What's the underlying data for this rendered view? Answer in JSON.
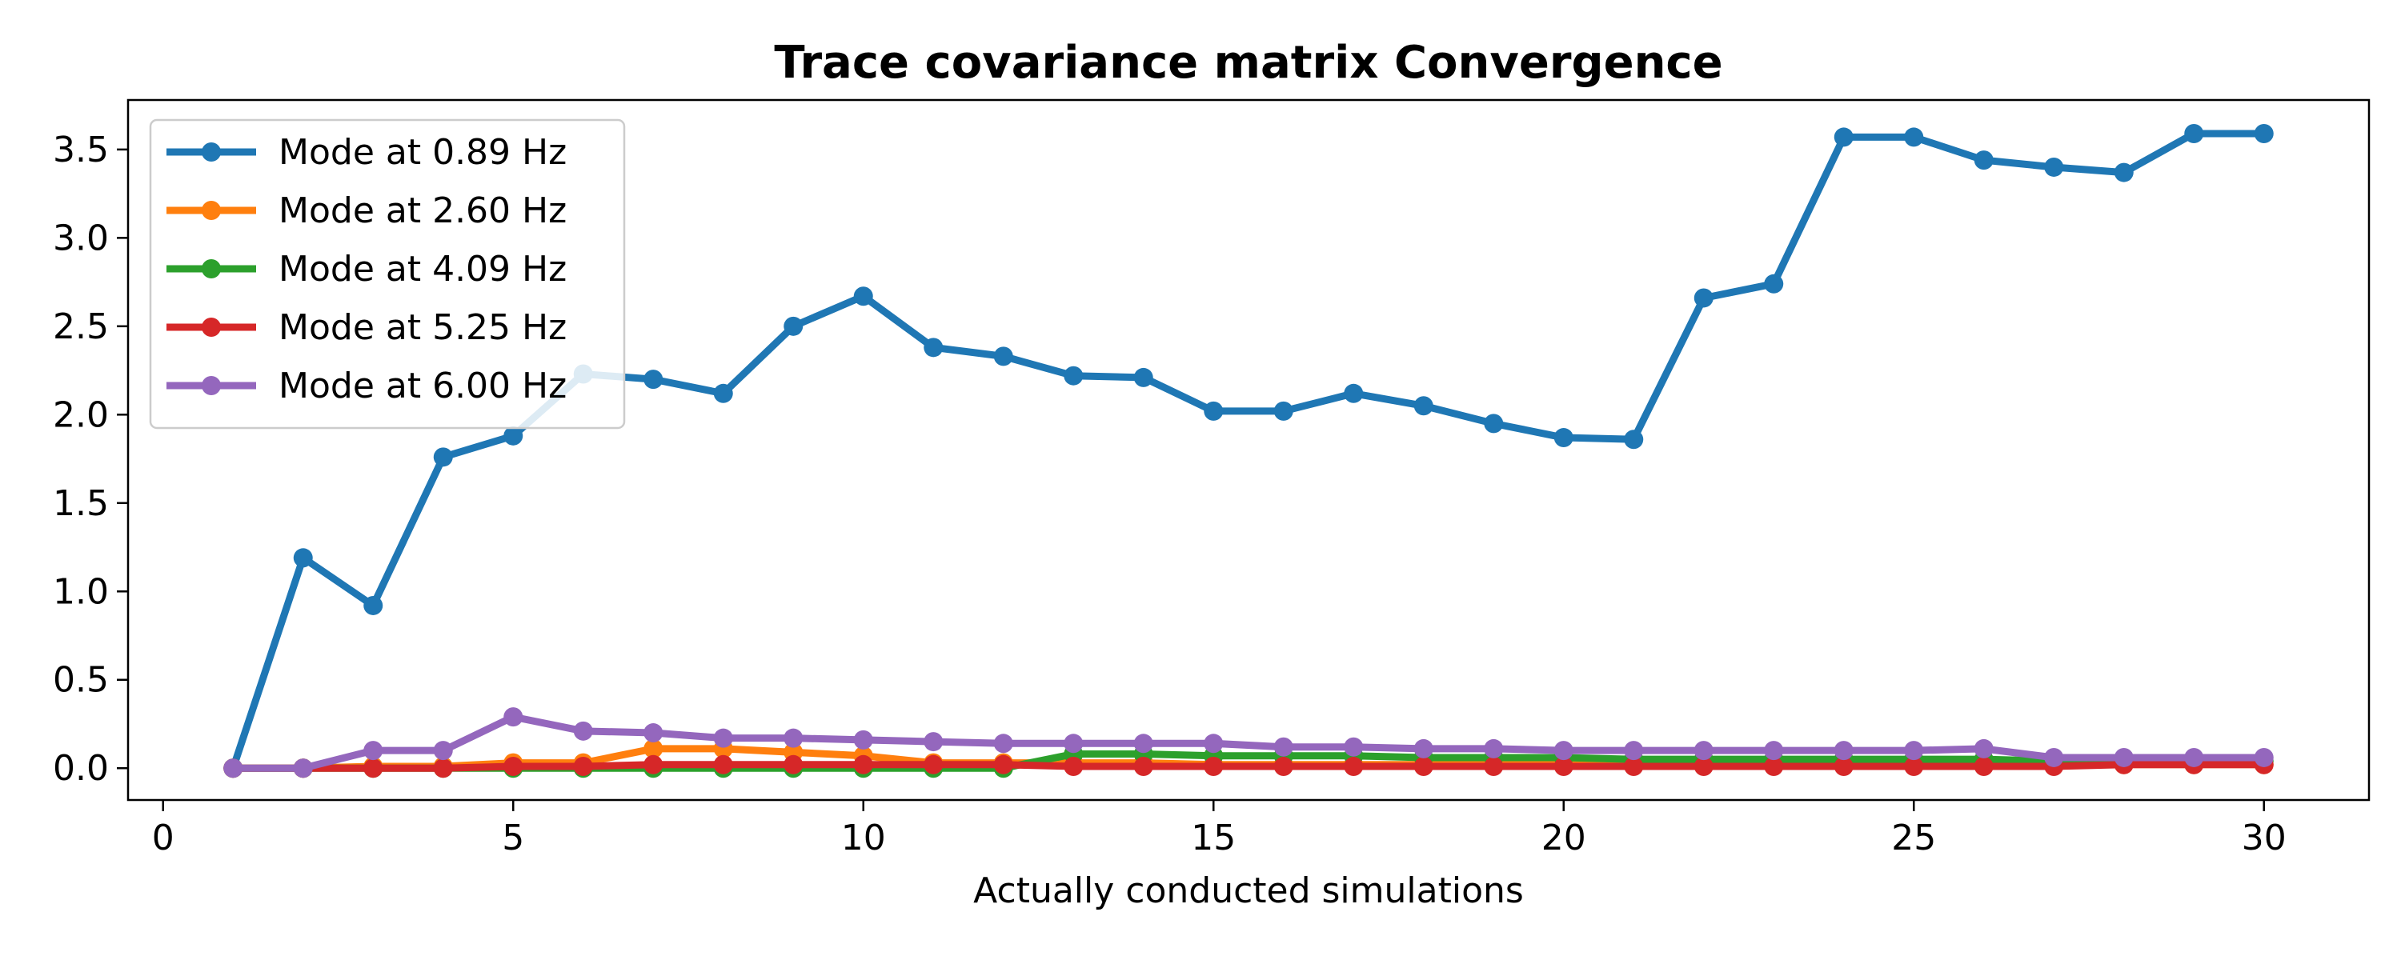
{
  "chart_data": {
    "type": "line",
    "title": "Trace covariance matrix Convergence",
    "xlabel": "Actually conducted simulations",
    "ylabel": "",
    "xlim": [
      -0.5,
      31.5
    ],
    "ylim": [
      -0.18,
      3.78
    ],
    "xticks": [
      0,
      5,
      10,
      15,
      20,
      25,
      30
    ],
    "yticks": [
      0.0,
      0.5,
      1.0,
      1.5,
      2.0,
      2.5,
      3.0,
      3.5
    ],
    "grid": false,
    "legend_position": "top-left",
    "x": [
      1,
      2,
      3,
      4,
      5,
      6,
      7,
      8,
      9,
      10,
      11,
      12,
      13,
      14,
      15,
      16,
      17,
      18,
      19,
      20,
      21,
      22,
      23,
      24,
      25,
      26,
      27,
      28,
      29,
      30
    ],
    "series": [
      {
        "name": "Mode at 0.89 Hz",
        "color": "#1f77b4",
        "values": [
          0.0,
          1.19,
          0.92,
          1.76,
          1.88,
          2.23,
          2.2,
          2.12,
          2.5,
          2.67,
          2.38,
          2.33,
          2.22,
          2.21,
          2.02,
          2.02,
          2.12,
          2.05,
          1.95,
          1.87,
          1.86,
          2.66,
          2.74,
          3.57,
          3.57,
          3.44,
          3.4,
          3.37,
          3.59,
          3.59
        ]
      },
      {
        "name": "Mode at 2.60 Hz",
        "color": "#ff7f0e",
        "values": [
          0.0,
          0.0,
          0.01,
          0.01,
          0.03,
          0.03,
          0.11,
          0.11,
          0.09,
          0.07,
          0.03,
          0.03,
          0.03,
          0.03,
          0.02,
          0.02,
          0.02,
          0.02,
          0.02,
          0.02,
          0.02,
          0.02,
          0.02,
          0.02,
          0.02,
          0.02,
          0.02,
          0.02,
          0.02,
          0.02
        ]
      },
      {
        "name": "Mode at 4.09 Hz",
        "color": "#2ca02c",
        "values": [
          0.0,
          0.0,
          0.0,
          0.0,
          0.0,
          0.0,
          0.0,
          0.0,
          0.0,
          0.0,
          0.0,
          0.0,
          0.08,
          0.08,
          0.07,
          0.07,
          0.07,
          0.06,
          0.06,
          0.06,
          0.05,
          0.05,
          0.05,
          0.05,
          0.05,
          0.05,
          0.04,
          0.04,
          0.04,
          0.04
        ]
      },
      {
        "name": "Mode at 5.25 Hz",
        "color": "#d62728",
        "values": [
          0.0,
          0.0,
          0.0,
          0.0,
          0.01,
          0.01,
          0.02,
          0.02,
          0.02,
          0.02,
          0.02,
          0.02,
          0.01,
          0.01,
          0.01,
          0.01,
          0.01,
          0.01,
          0.01,
          0.01,
          0.01,
          0.01,
          0.01,
          0.01,
          0.01,
          0.01,
          0.01,
          0.02,
          0.02,
          0.02
        ]
      },
      {
        "name": "Mode at 6.00 Hz",
        "color": "#9467bd",
        "values": [
          0.0,
          0.0,
          0.1,
          0.1,
          0.29,
          0.21,
          0.2,
          0.17,
          0.17,
          0.16,
          0.15,
          0.14,
          0.14,
          0.14,
          0.14,
          0.12,
          0.12,
          0.11,
          0.11,
          0.1,
          0.1,
          0.1,
          0.1,
          0.1,
          0.1,
          0.11,
          0.06,
          0.06,
          0.06,
          0.06
        ]
      }
    ]
  }
}
